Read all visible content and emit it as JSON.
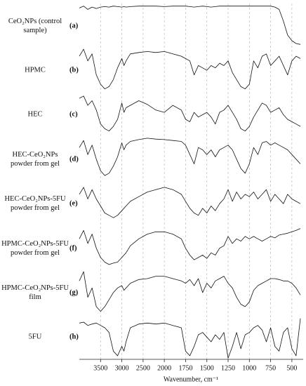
{
  "chart_data": {
    "type": "line",
    "x_label": "Wavenumber, cm⁻¹",
    "xlim": [
      4000,
      400
    ],
    "xticks": [
      3500,
      3000,
      2500,
      2000,
      1750,
      1500,
      1250,
      1000,
      750,
      500
    ],
    "ylim": [
      0,
      100
    ],
    "grid": true,
    "x": [
      4000,
      3900,
      3800,
      3700,
      3600,
      3500,
      3400,
      3300,
      3200,
      3100,
      3000,
      2950,
      2900,
      2800,
      2600,
      2400,
      2200,
      2000,
      1900,
      1800,
      1750,
      1700,
      1650,
      1600,
      1550,
      1500,
      1450,
      1400,
      1350,
      1300,
      1250,
      1200,
      1150,
      1100,
      1050,
      1000,
      950,
      900,
      850,
      800,
      750,
      700,
      650,
      600,
      550,
      500,
      450,
      400
    ],
    "series": [
      {
        "name": "CeO₂NPs (control sample)",
        "label": "(a)",
        "color": "#111111",
        "values": [
          88,
          92,
          85,
          90,
          87,
          90,
          91,
          90,
          92,
          91,
          90,
          91,
          90,
          91,
          92,
          92,
          92,
          91,
          92,
          92,
          92,
          91,
          90,
          91,
          92,
          91,
          90,
          91,
          92,
          92,
          92,
          92,
          92,
          92,
          92,
          92,
          92,
          92,
          92,
          92,
          92,
          90,
          85,
          60,
          30,
          18,
          12,
          10
        ]
      },
      {
        "name": "HPMC",
        "label": "(b)",
        "color": "#111111",
        "values": [
          80,
          95,
          70,
          85,
          40,
          20,
          10,
          15,
          30,
          55,
          75,
          60,
          70,
          85,
          88,
          90,
          88,
          90,
          85,
          80,
          75,
          70,
          40,
          60,
          55,
          50,
          60,
          55,
          65,
          60,
          70,
          45,
          30,
          15,
          10,
          20,
          70,
          55,
          80,
          85,
          60,
          70,
          80,
          60,
          40,
          70,
          80,
          75
        ]
      },
      {
        "name": "HEC",
        "label": "(c)",
        "color": "#111111",
        "values": [
          85,
          90,
          70,
          80,
          60,
          30,
          20,
          15,
          25,
          40,
          75,
          55,
          65,
          70,
          80,
          72,
          60,
          55,
          70,
          60,
          40,
          35,
          55,
          45,
          50,
          55,
          45,
          30,
          55,
          60,
          70,
          55,
          40,
          20,
          15,
          25,
          45,
          60,
          75,
          70,
          55,
          60,
          65,
          50,
          40,
          35,
          30,
          25
        ]
      },
      {
        "name": "HEC-CeO₂NPs powder from gel",
        "label": "(d)",
        "color": "#111111",
        "values": [
          75,
          90,
          60,
          80,
          50,
          25,
          15,
          20,
          35,
          55,
          85,
          70,
          80,
          88,
          92,
          95,
          93,
          92,
          90,
          88,
          80,
          60,
          40,
          75,
          70,
          60,
          70,
          55,
          70,
          75,
          80,
          70,
          50,
          30,
          20,
          40,
          75,
          60,
          85,
          88,
          80,
          85,
          80,
          75,
          70,
          60,
          50,
          40
        ]
      },
      {
        "name": "HEC-CeO₂NPs-5FU powder from gel",
        "label": "(e)",
        "color": "#111111",
        "values": [
          70,
          85,
          60,
          80,
          60,
          45,
          30,
          25,
          20,
          25,
          35,
          40,
          45,
          55,
          65,
          75,
          80,
          85,
          80,
          70,
          55,
          40,
          30,
          25,
          40,
          30,
          45,
          35,
          50,
          60,
          80,
          55,
          75,
          60,
          70,
          65,
          75,
          60,
          70,
          80,
          55,
          70,
          60,
          50,
          70,
          60,
          55,
          50
        ]
      },
      {
        "name": "HPMC-CeO₂NPs-5FU powder from gel",
        "label": "(f)",
        "color": "#111111",
        "values": [
          70,
          88,
          60,
          80,
          50,
          30,
          20,
          15,
          18,
          20,
          30,
          35,
          40,
          55,
          70,
          80,
          85,
          85,
          80,
          70,
          50,
          35,
          25,
          30,
          35,
          28,
          40,
          35,
          50,
          55,
          75,
          60,
          70,
          65,
          75,
          70,
          75,
          70,
          65,
          70,
          75,
          72,
          78,
          80,
          82,
          85,
          88,
          92
        ]
      },
      {
        "name": "HPMC-CeO₂NPs-5FU film",
        "label": "(g)",
        "color": "#111111",
        "values": [
          75,
          95,
          40,
          60,
          20,
          10,
          20,
          35,
          50,
          60,
          65,
          55,
          60,
          70,
          78,
          80,
          85,
          85,
          80,
          75,
          70,
          78,
          65,
          80,
          50,
          70,
          60,
          75,
          80,
          85,
          70,
          60,
          40,
          25,
          20,
          30,
          55,
          65,
          70,
          75,
          80,
          80,
          78,
          75,
          75,
          70,
          60,
          45
        ]
      },
      {
        "name": "5FU",
        "label": "(h)",
        "color": "#111111",
        "values": [
          80,
          82,
          75,
          78,
          80,
          75,
          70,
          60,
          20,
          10,
          30,
          20,
          40,
          70,
          78,
          80,
          78,
          80,
          75,
          70,
          20,
          10,
          30,
          55,
          60,
          50,
          40,
          55,
          45,
          60,
          5,
          30,
          60,
          25,
          55,
          60,
          70,
          75,
          65,
          40,
          70,
          30,
          20,
          60,
          70,
          25,
          10,
          90
        ]
      }
    ]
  }
}
